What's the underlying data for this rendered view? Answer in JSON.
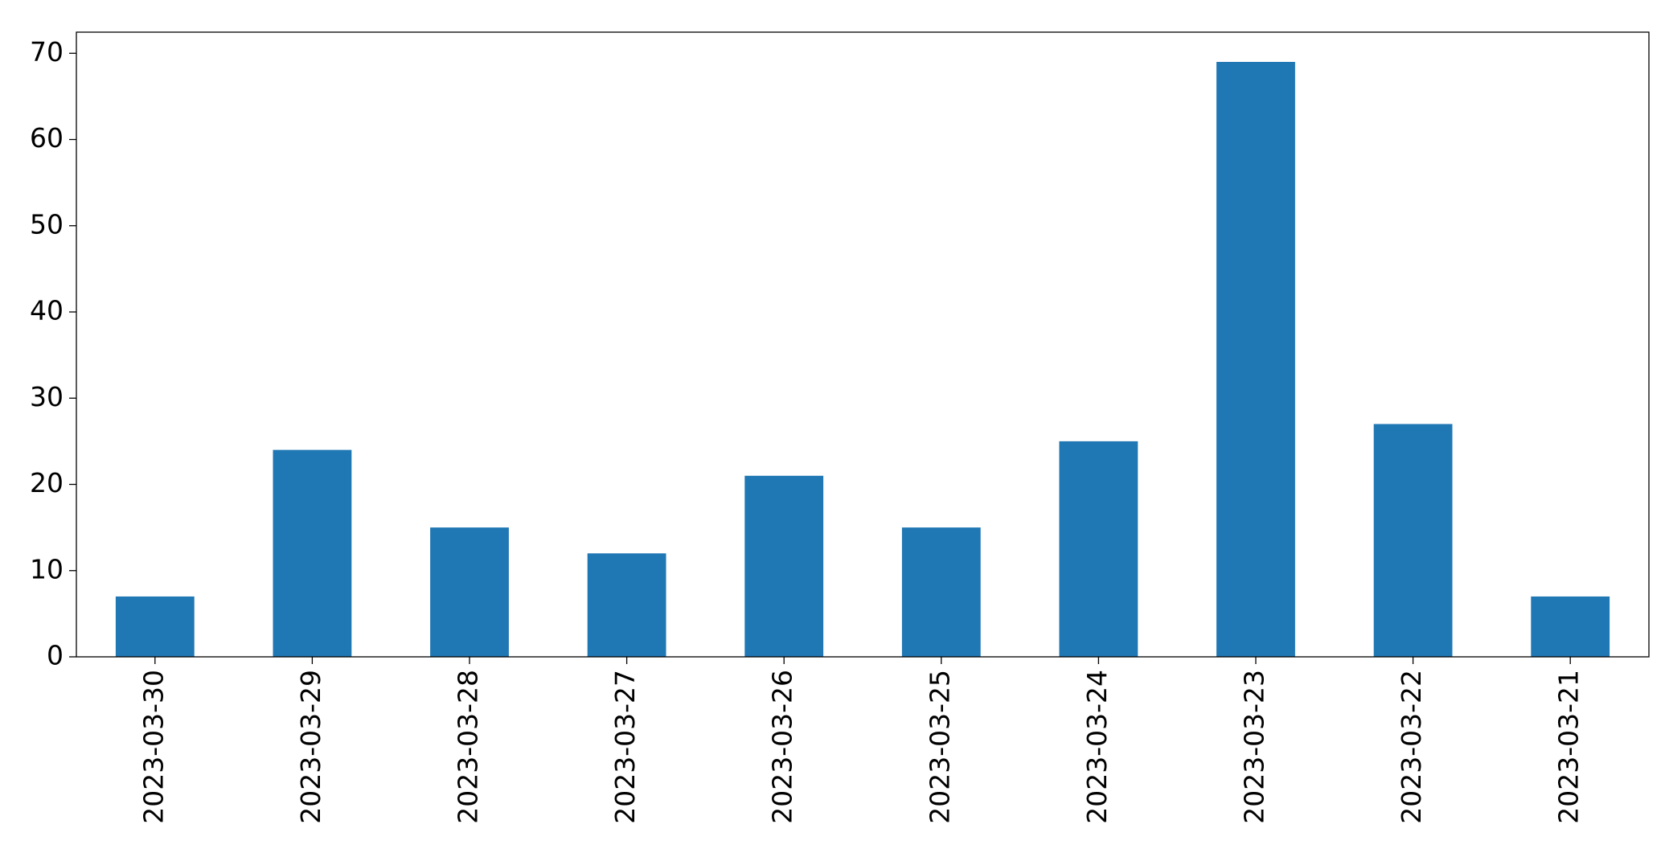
{
  "chart_data": {
    "type": "bar",
    "categories": [
      "2023-03-30",
      "2023-03-29",
      "2023-03-28",
      "2023-03-27",
      "2023-03-26",
      "2023-03-25",
      "2023-03-24",
      "2023-03-23",
      "2023-03-22",
      "2023-03-21"
    ],
    "values": [
      7,
      24,
      15,
      12,
      21,
      15,
      25,
      69,
      27,
      7
    ],
    "color": "#1f77b4",
    "ylim": [
      0,
      72.45
    ],
    "yticks": [
      0,
      10,
      20,
      30,
      40,
      50,
      60,
      70
    ],
    "grid": false
  }
}
